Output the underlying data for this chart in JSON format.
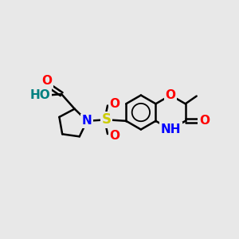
{
  "background_color": "#e8e8e8",
  "bond_color": "#000000",
  "bond_width": 1.8,
  "atom_colors": {
    "O": "#ff0000",
    "N": "#0000ff",
    "S": "#cccc00",
    "H": "#008080",
    "C": "#000000"
  },
  "figsize": [
    3.0,
    3.0
  ],
  "dpi": 100,
  "xlim": [
    0,
    10
  ],
  "ylim": [
    0,
    10
  ]
}
